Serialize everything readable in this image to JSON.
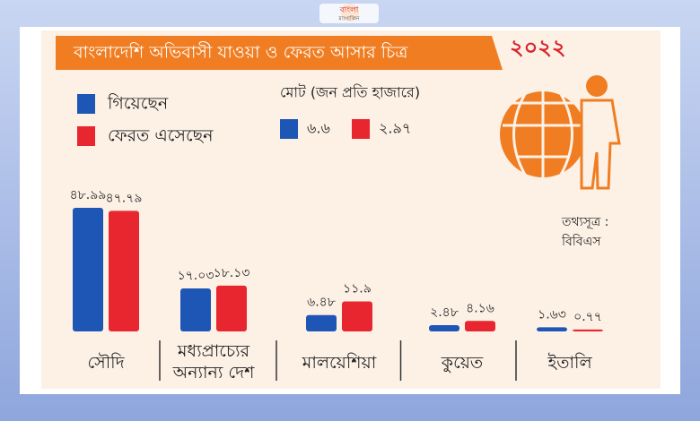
{
  "logo": {
    "name": "বাংলা",
    "subtitle": "ম্যাগাজিন"
  },
  "chart_data": {
    "type": "bar",
    "title": "বাংলাদেশি অভিবাসী যাওয়া ও ফেরত আসার চিত্র",
    "subtitle": "২০২২",
    "categories": [
      "সৌদি",
      "মধ্যপ্রাচ্যের অন্যান্য দেশ",
      "মালয়েশিয়া",
      "কুয়েত",
      "ইতালি"
    ],
    "series": [
      {
        "name": "গিয়েছেন",
        "color": "#1e56b5",
        "values": [
          48.99,
          17.03,
          6.48,
          2.48,
          1.63
        ],
        "value_labels": [
          "৪৮.৯৯",
          "১৭.০৩",
          "৬.৪৮",
          "২.৪৮",
          "১.৬৩"
        ]
      },
      {
        "name": "ফেরত এসেছেন",
        "color": "#e8262f",
        "values": [
          47.79,
          18.13,
          11.9,
          4.16,
          0.77
        ],
        "value_labels": [
          "৪৭.৭৯",
          "১৮.১৩",
          "১১.৯",
          "৪.১৬",
          "০.৭৭"
        ]
      }
    ],
    "totals": {
      "title": "মোট (জন প্রতি হাজারে)",
      "values": [
        6.6,
        2.97
      ],
      "value_labels": [
        "৬.৬",
        "২.৯৭"
      ]
    },
    "source": [
      "তথ্যসূত্র :",
      "বিবিএস"
    ]
  }
}
